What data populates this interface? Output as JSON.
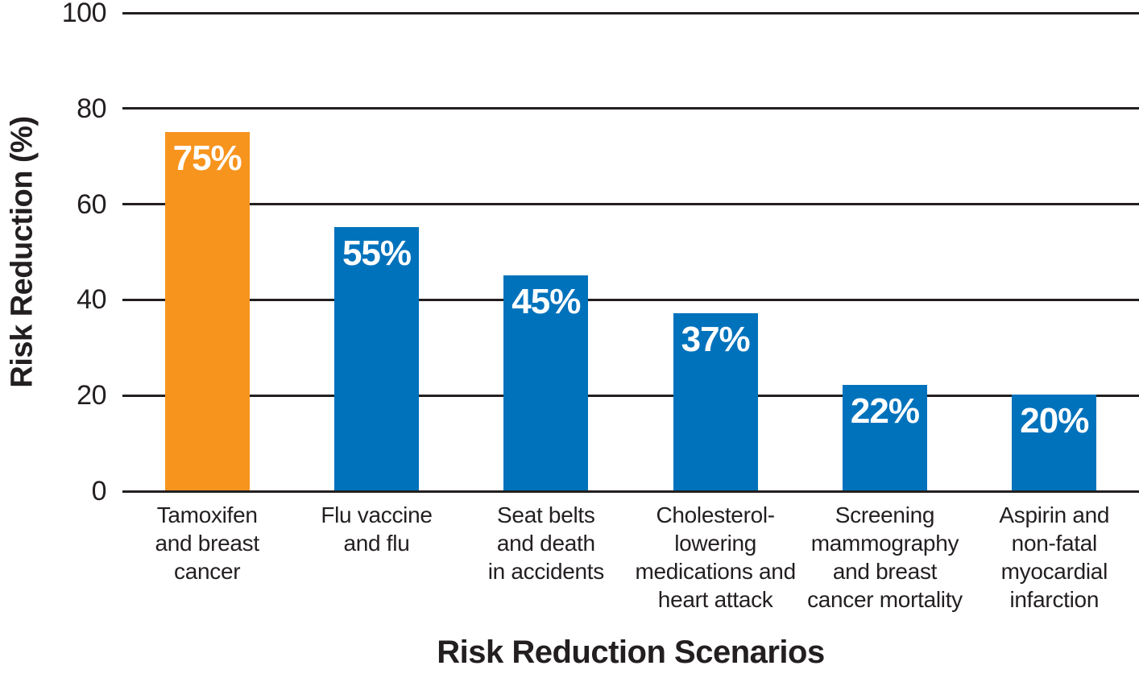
{
  "chart_data": {
    "type": "bar",
    "title": "",
    "xlabel": "Risk Reduction Scenarios",
    "ylabel": "Risk Reduction (%)",
    "ylim": [
      0,
      100
    ],
    "yticks": [
      0,
      20,
      40,
      60,
      80,
      100
    ],
    "grid": "horizontal-black-lines-full-width",
    "legend": "none",
    "categories": [
      "Tamoxifen\nand breast\ncancer",
      "Flu vaccine\nand flu",
      "Seat belts\nand death\nin accidents",
      "Cholesterol-\nlowering\nmedications and\nheart attack",
      "Screening\nmammography\nand breast\ncancer mortality",
      "Aspirin and\nnon-fatal\nmyocardial\ninfarction"
    ],
    "values": [
      75,
      55,
      45,
      37,
      22,
      20
    ],
    "value_labels": [
      "75%",
      "55%",
      "45%",
      "37%",
      "22%",
      "20%"
    ],
    "bar_colors": [
      "#F7941E",
      "#0072BC",
      "#0072BC",
      "#0072BC",
      "#0072BC",
      "#0072BC"
    ],
    "colors": {
      "highlight_bar": "#F7941E",
      "default_bar": "#0072BC",
      "axis_and_text": "#231F20",
      "value_label_text": "#FFFFFF",
      "background": "#FFFFFF"
    }
  }
}
